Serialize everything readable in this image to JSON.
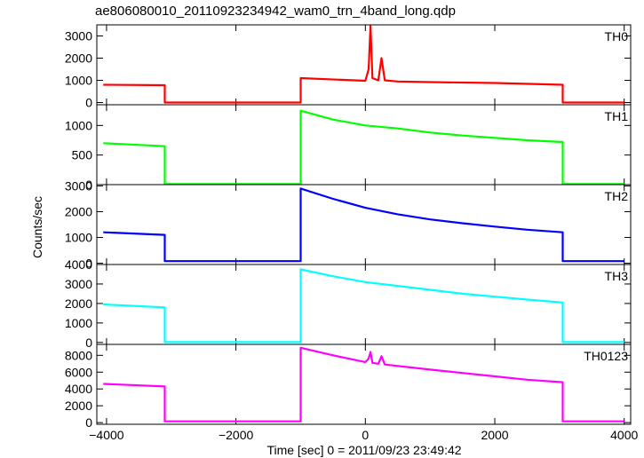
{
  "chart_data": {
    "type": "line",
    "title": "ae806080010_20110923234942_wam0_trn_4band_long.qdp",
    "xlabel": "Time [sec] 0 = 2011/09/23 23:49:42",
    "ylabel": "Counts/sec",
    "xlim": [
      -4150,
      4100
    ],
    "xticks": [
      -4000,
      -2000,
      0,
      2000,
      4000
    ],
    "xtick_labels": [
      "−4000",
      "−2000",
      "0",
      "2000",
      "4000"
    ],
    "grid": false,
    "panels": [
      {
        "name": "TH0",
        "color": "#ff0000",
        "ylim": [
          -100,
          3500
        ],
        "yticks": [
          0,
          1000,
          2000,
          3000
        ],
        "ytick_labels": [
          "0",
          "1000",
          "2000",
          "3000"
        ],
        "data": [
          [
            -4050,
            800
          ],
          [
            -3100,
            780
          ],
          [
            -3100,
            0
          ],
          [
            -1000,
            0
          ],
          [
            -1000,
            1100
          ],
          [
            0,
            980
          ],
          [
            50,
            1500
          ],
          [
            80,
            3450
          ],
          [
            110,
            1100
          ],
          [
            200,
            1000
          ],
          [
            250,
            2000
          ],
          [
            300,
            1000
          ],
          [
            500,
            950
          ],
          [
            1000,
            920
          ],
          [
            2000,
            880
          ],
          [
            3050,
            800
          ],
          [
            3050,
            0
          ],
          [
            4000,
            0
          ]
        ]
      },
      {
        "name": "TH1",
        "color": "#00ff00",
        "ylim": [
          0,
          1350
        ],
        "yticks": [
          0,
          500,
          1000
        ],
        "ytick_labels": [
          "0",
          "500",
          "1000"
        ],
        "data": [
          [
            -4050,
            700
          ],
          [
            -3100,
            650
          ],
          [
            -3100,
            10
          ],
          [
            -1000,
            10
          ],
          [
            -1000,
            1250
          ],
          [
            -500,
            1100
          ],
          [
            0,
            1000
          ],
          [
            500,
            950
          ],
          [
            1000,
            880
          ],
          [
            1500,
            830
          ],
          [
            2000,
            790
          ],
          [
            2500,
            750
          ],
          [
            3050,
            720
          ],
          [
            3050,
            10
          ],
          [
            4000,
            10
          ]
        ]
      },
      {
        "name": "TH2",
        "color": "#0000ff",
        "ylim": [
          -50,
          3050
        ],
        "yticks": [
          0,
          1000,
          2000,
          3000
        ],
        "ytick_labels": [
          "0",
          "1000",
          "2000",
          "3000"
        ],
        "data": [
          [
            -4050,
            1200
          ],
          [
            -3100,
            1100
          ],
          [
            -3100,
            80
          ],
          [
            -1000,
            80
          ],
          [
            -1000,
            2900
          ],
          [
            -500,
            2500
          ],
          [
            0,
            2150
          ],
          [
            500,
            1900
          ],
          [
            1000,
            1700
          ],
          [
            1500,
            1550
          ],
          [
            2000,
            1420
          ],
          [
            2500,
            1300
          ],
          [
            3050,
            1200
          ],
          [
            3050,
            80
          ],
          [
            4000,
            80
          ]
        ]
      },
      {
        "name": "TH3",
        "color": "#00ffff",
        "ylim": [
          -100,
          4000
        ],
        "yticks": [
          0,
          1000,
          2000,
          3000,
          4000
        ],
        "ytick_labels": [
          "0",
          "1000",
          "2000",
          "3000",
          "4000"
        ],
        "data": [
          [
            -4050,
            1950
          ],
          [
            -3100,
            1800
          ],
          [
            -3100,
            20
          ],
          [
            -1000,
            20
          ],
          [
            -1000,
            3750
          ],
          [
            -500,
            3400
          ],
          [
            0,
            3100
          ],
          [
            500,
            2900
          ],
          [
            1000,
            2700
          ],
          [
            1500,
            2500
          ],
          [
            2000,
            2350
          ],
          [
            2500,
            2200
          ],
          [
            3050,
            2050
          ],
          [
            3050,
            20
          ],
          [
            4000,
            20
          ]
        ]
      },
      {
        "name": "TH0123",
        "color": "#ff00ff",
        "ylim": [
          -200,
          9300
        ],
        "yticks": [
          0,
          2000,
          4000,
          6000,
          8000
        ],
        "ytick_labels": [
          "0",
          "2000",
          "4000",
          "6000",
          "8000"
        ],
        "data": [
          [
            -4050,
            4600
          ],
          [
            -3100,
            4300
          ],
          [
            -3100,
            150
          ],
          [
            -1000,
            150
          ],
          [
            -1000,
            8900
          ],
          [
            -500,
            8000
          ],
          [
            0,
            7200
          ],
          [
            50,
            7600
          ],
          [
            80,
            8400
          ],
          [
            110,
            7100
          ],
          [
            200,
            7000
          ],
          [
            250,
            7900
          ],
          [
            300,
            6900
          ],
          [
            1000,
            6300
          ],
          [
            1500,
            5900
          ],
          [
            2000,
            5500
          ],
          [
            2500,
            5100
          ],
          [
            3050,
            4800
          ],
          [
            3050,
            150
          ],
          [
            4000,
            150
          ]
        ]
      }
    ]
  }
}
